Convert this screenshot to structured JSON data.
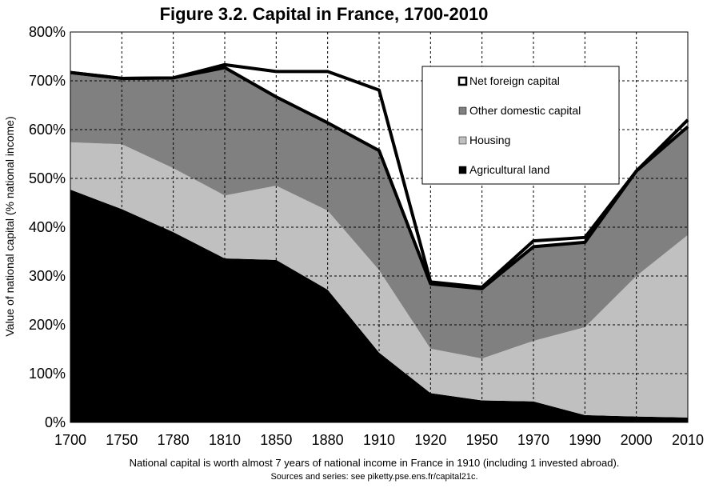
{
  "chart_data": {
    "type": "area",
    "title": "Figure 3.2. Capital in France, 1700-2010",
    "xlabel": "",
    "ylabel": "Value of national capital (% national income)",
    "categories": [
      "1700",
      "1750",
      "1780",
      "1810",
      "1850",
      "1880",
      "1910",
      "1920",
      "1950",
      "1970",
      "1990",
      "2000",
      "2010"
    ],
    "ylim": [
      0,
      800
    ],
    "yticks": [
      0,
      100,
      200,
      300,
      400,
      500,
      600,
      700,
      800
    ],
    "ytick_labels": [
      "0%",
      "100%",
      "200%",
      "300%",
      "400%",
      "500%",
      "600%",
      "700%",
      "800%"
    ],
    "grid": true,
    "stacked": true,
    "series": [
      {
        "name": "Agricultural land",
        "color": "#000000",
        "values": [
          477,
          437,
          390,
          336,
          333,
          272,
          143,
          60,
          45,
          43,
          15,
          12,
          10
        ]
      },
      {
        "name": "Housing",
        "color": "#c0c0c0",
        "values": [
          97,
          133,
          131,
          129,
          152,
          162,
          169,
          91,
          86,
          124,
          180,
          288,
          374
        ]
      },
      {
        "name": "Other domestic capital",
        "color": "#808080",
        "values": [
          143,
          135,
          185,
          262,
          182,
          180,
          245,
          133,
          143,
          193,
          174,
          215,
          222
        ]
      },
      {
        "name": "Net foreign capital",
        "color": "#ffffff",
        "values": [
          0,
          0,
          0,
          6,
          52,
          105,
          124,
          4,
          3,
          12,
          10,
          0,
          14
        ]
      }
    ],
    "legend_position": "top-right",
    "note": "National capital is worth almost 7 years of national income in France in 1910 (including 1 invested abroad).",
    "source": "Sources and series:  see piketty.pse.ens.fr/capital21c."
  }
}
